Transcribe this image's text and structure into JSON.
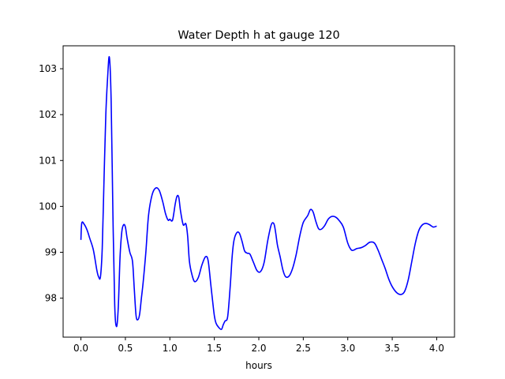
{
  "chart_data": {
    "type": "line",
    "title": "Water Depth h at gauge 120",
    "xlabel": "hours",
    "ylabel": "",
    "xlim": [
      -0.2,
      4.2
    ],
    "ylim": [
      97.15,
      103.5
    ],
    "xticks": [
      0.0,
      0.5,
      1.0,
      1.5,
      2.0,
      2.5,
      3.0,
      3.5,
      4.0
    ],
    "xtick_labels": [
      "0.0",
      "0.5",
      "1.0",
      "1.5",
      "2.0",
      "2.5",
      "3.0",
      "3.5",
      "4.0"
    ],
    "yticks": [
      98,
      99,
      100,
      101,
      102,
      103
    ],
    "ytick_labels": [
      "98",
      "99",
      "100",
      "101",
      "102",
      "103"
    ],
    "grid": false,
    "series": [
      {
        "color": "#0000ff",
        "x": [
          0.0,
          0.01,
          0.04,
          0.07,
          0.1,
          0.14,
          0.18,
          0.2,
          0.22,
          0.24,
          0.26,
          0.28,
          0.3,
          0.32,
          0.34,
          0.36,
          0.38,
          0.4,
          0.42,
          0.44,
          0.46,
          0.48,
          0.5,
          0.52,
          0.55,
          0.58,
          0.6,
          0.62,
          0.64,
          0.66,
          0.68,
          0.7,
          0.73,
          0.76,
          0.8,
          0.84,
          0.88,
          0.92,
          0.95,
          0.98,
          1.0,
          1.03,
          1.06,
          1.08,
          1.1,
          1.12,
          1.15,
          1.18,
          1.2,
          1.22,
          1.25,
          1.28,
          1.32,
          1.36,
          1.4,
          1.43,
          1.46,
          1.48,
          1.5,
          1.52,
          1.55,
          1.58,
          1.6,
          1.62,
          1.65,
          1.68,
          1.7,
          1.72,
          1.75,
          1.78,
          1.81,
          1.84,
          1.87,
          1.9,
          1.94,
          1.98,
          2.02,
          2.06,
          2.1,
          2.14,
          2.17,
          2.19,
          2.21,
          2.24,
          2.27,
          2.3,
          2.34,
          2.38,
          2.42,
          2.46,
          2.5,
          2.55,
          2.58,
          2.61,
          2.64,
          2.67,
          2.7,
          2.74,
          2.78,
          2.82,
          2.86,
          2.9,
          2.95,
          3.0,
          3.04,
          3.07,
          3.1,
          3.15,
          3.2,
          3.25,
          3.3,
          3.34,
          3.38,
          3.42,
          3.46,
          3.5,
          3.55,
          3.6,
          3.64,
          3.68,
          3.72,
          3.76,
          3.8,
          3.84,
          3.88,
          3.92,
          3.96,
          4.0
        ],
        "y": [
          99.27,
          99.64,
          99.6,
          99.48,
          99.3,
          99.05,
          98.6,
          98.46,
          98.47,
          99.1,
          100.6,
          102.0,
          102.8,
          103.25,
          102.3,
          99.8,
          97.85,
          97.38,
          97.8,
          98.9,
          99.45,
          99.6,
          99.55,
          99.3,
          99.0,
          98.8,
          98.2,
          97.62,
          97.53,
          97.65,
          98.0,
          98.35,
          99.0,
          99.8,
          100.25,
          100.4,
          100.35,
          100.1,
          99.85,
          99.7,
          99.72,
          99.7,
          100.05,
          100.22,
          100.2,
          99.9,
          99.6,
          99.62,
          99.35,
          98.8,
          98.5,
          98.36,
          98.45,
          98.72,
          98.9,
          98.82,
          98.3,
          97.95,
          97.62,
          97.45,
          97.36,
          97.32,
          97.42,
          97.5,
          97.6,
          98.3,
          98.9,
          99.25,
          99.42,
          99.42,
          99.25,
          99.03,
          98.98,
          98.96,
          98.78,
          98.6,
          98.58,
          98.78,
          99.25,
          99.6,
          99.62,
          99.42,
          99.15,
          98.9,
          98.62,
          98.47,
          98.48,
          98.65,
          98.95,
          99.35,
          99.65,
          99.8,
          99.93,
          99.88,
          99.68,
          99.52,
          99.5,
          99.58,
          99.72,
          99.78,
          99.77,
          99.7,
          99.55,
          99.2,
          99.05,
          99.05,
          99.08,
          99.1,
          99.15,
          99.22,
          99.2,
          99.05,
          98.85,
          98.65,
          98.42,
          98.25,
          98.12,
          98.08,
          98.15,
          98.4,
          98.8,
          99.2,
          99.48,
          99.6,
          99.63,
          99.6,
          99.55,
          99.57
        ]
      }
    ]
  }
}
